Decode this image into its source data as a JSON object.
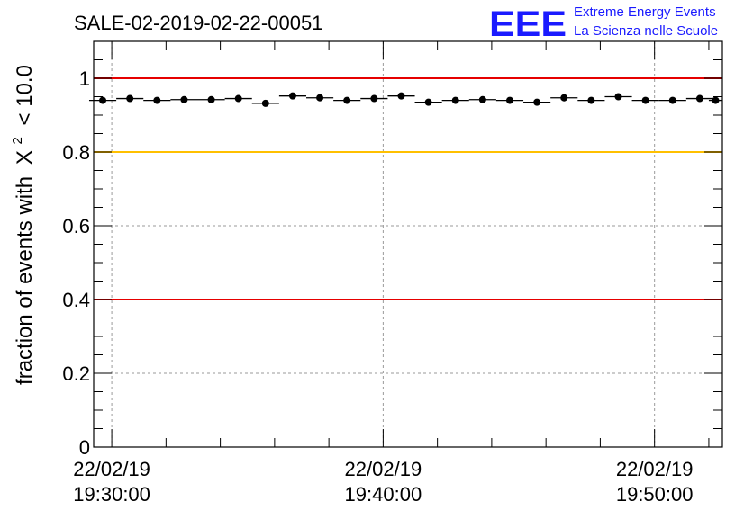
{
  "header": {
    "title": "SALE-02-2019-02-22-00051",
    "logo_mark": "EEE",
    "logo_line1": "Extreme Energy Events",
    "logo_line2": "La Scienza nelle Scuole"
  },
  "colors": {
    "logo": "#1a1aff",
    "limit_red": "#e60000",
    "limit_yellow": "#ffc000",
    "markers": "#000000",
    "grid": "#9a9a9a"
  },
  "chart_data": {
    "type": "scatter",
    "title": "SALE-02-2019-02-22-00051",
    "ylabel": "fraction of events with",
    "ylabel_symbol": "X",
    "ylabel_superscript": "2",
    "ylabel_suffix": "< 10.0",
    "xlabel": "",
    "ylim": [
      0,
      1.1
    ],
    "xlim": [
      "2019-02-22 19:29:20",
      "2019-02-22 19:52:30"
    ],
    "grid": true,
    "y_ticks": [
      {
        "value": 0,
        "label": "0"
      },
      {
        "value": 0.2,
        "label": "0.2"
      },
      {
        "value": 0.4,
        "label": "0.4"
      },
      {
        "value": 0.6,
        "label": "0.6"
      },
      {
        "value": 0.8,
        "label": "0.8"
      },
      {
        "value": 1.0,
        "label": "1"
      }
    ],
    "x_ticks": [
      {
        "time": "2019-02-22 19:30:00",
        "date_label": "22/02/19",
        "time_label": "19:30:00"
      },
      {
        "time": "2019-02-22 19:40:00",
        "date_label": "22/02/19",
        "time_label": "19:40:00"
      },
      {
        "time": "2019-02-22 19:50:00",
        "date_label": "22/02/19",
        "time_label": "19:50:00"
      }
    ],
    "reference_lines": [
      {
        "value": 1.0,
        "color": "#e60000"
      },
      {
        "value": 0.8,
        "color": "#ffc000"
      },
      {
        "value": 0.4,
        "color": "#e60000"
      }
    ],
    "series": [
      {
        "x": [
          "2019-02-22 19:29:40",
          "2019-02-22 19:30:40",
          "2019-02-22 19:31:40",
          "2019-02-22 19:32:40",
          "2019-02-22 19:33:40",
          "2019-02-22 19:34:40",
          "2019-02-22 19:35:40",
          "2019-02-22 19:36:40",
          "2019-02-22 19:37:40",
          "2019-02-22 19:38:40",
          "2019-02-22 19:39:40",
          "2019-02-22 19:40:40",
          "2019-02-22 19:41:40",
          "2019-02-22 19:42:40",
          "2019-02-22 19:43:40",
          "2019-02-22 19:44:40",
          "2019-02-22 19:45:40",
          "2019-02-22 19:46:40",
          "2019-02-22 19:47:40",
          "2019-02-22 19:48:40",
          "2019-02-22 19:49:40",
          "2019-02-22 19:50:40",
          "2019-02-22 19:51:40",
          "2019-02-22 19:52:15"
        ],
        "y": [
          0.94,
          0.945,
          0.94,
          0.942,
          0.942,
          0.945,
          0.932,
          0.952,
          0.947,
          0.94,
          0.945,
          0.952,
          0.935,
          0.94,
          0.942,
          0.94,
          0.935,
          0.947,
          0.94,
          0.95,
          0.94,
          0.94,
          0.945,
          0.94
        ]
      }
    ]
  }
}
